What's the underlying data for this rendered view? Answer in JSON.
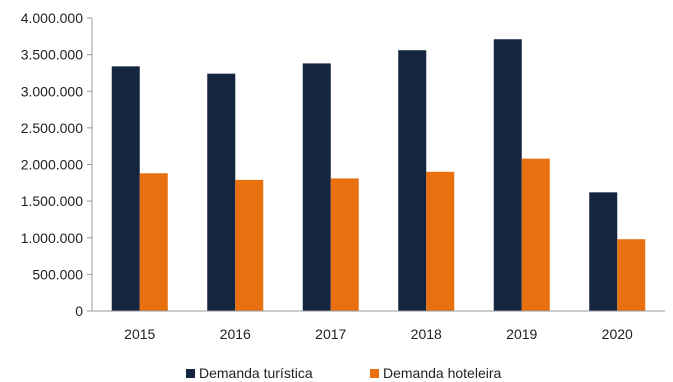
{
  "chart_data": {
    "type": "bar",
    "categories": [
      "2015",
      "2016",
      "2017",
      "2018",
      "2019",
      "2020"
    ],
    "series": [
      {
        "name": "Demanda turística",
        "color": "#13253f",
        "values": [
          3340000,
          3240000,
          3380000,
          3560000,
          3710000,
          1620000
        ]
      },
      {
        "name": "Demanda hoteleira",
        "color": "#e8700f",
        "values": [
          1880000,
          1790000,
          1810000,
          1900000,
          2080000,
          980000
        ]
      }
    ],
    "ylim": [
      0,
      4000000
    ],
    "yticks": [
      "0",
      "500.000",
      "1.000.000",
      "1.500.000",
      "2.000.000",
      "2.500.000",
      "3.000.000",
      "3.500.000",
      "4.000.000"
    ],
    "grid": false,
    "legend_position": "bottom"
  }
}
